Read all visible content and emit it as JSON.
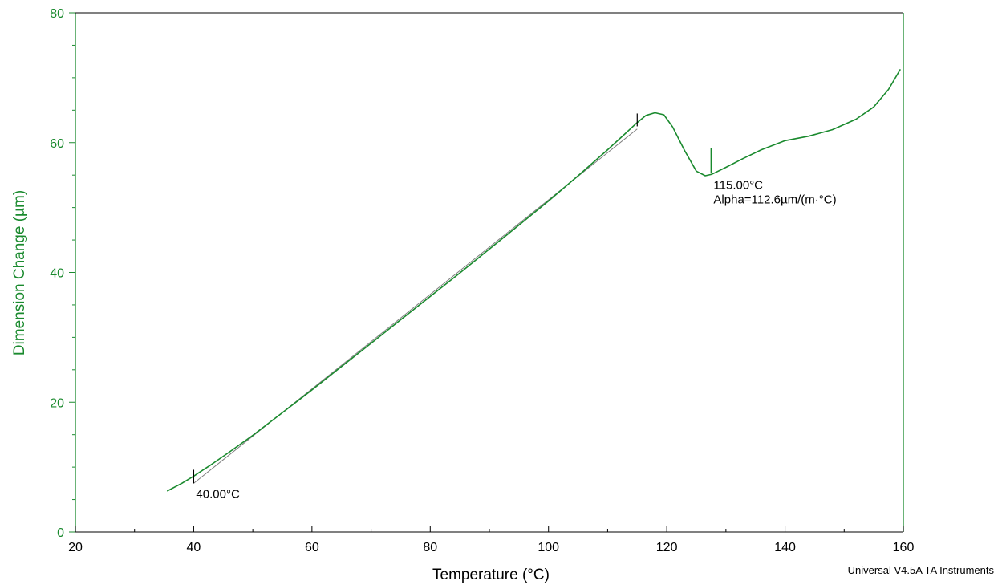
{
  "chart_data": {
    "type": "line",
    "title": "",
    "xlabel": "Temperature (°C)",
    "ylabel": "Dimension Change (µm)",
    "xlim": [
      20,
      160
    ],
    "ylim": [
      0,
      80
    ],
    "xticks": [
      "20",
      "40",
      "60",
      "80",
      "100",
      "120",
      "140",
      "160"
    ],
    "yticks": [
      "0",
      "20",
      "40",
      "60",
      "80"
    ],
    "grid": false,
    "legend": "none",
    "series": [
      {
        "color": "#1a8a2e",
        "x": [
          35.5,
          38,
          40,
          43,
          46,
          50,
          55,
          60,
          65,
          70,
          75,
          80,
          85,
          90,
          95,
          100,
          105,
          110,
          113,
          115,
          116.5,
          118,
          119.5,
          121,
          123,
          125,
          126.5,
          127.5,
          128,
          130,
          133,
          136,
          140,
          144,
          148,
          152,
          155,
          157.5,
          159.5
        ],
        "y": [
          6.3,
          7.5,
          8.6,
          10.4,
          12.3,
          14.9,
          18.4,
          21.9,
          25.5,
          29.1,
          32.7,
          36.3,
          39.9,
          43.6,
          47.3,
          51.0,
          54.9,
          58.9,
          61.4,
          63.1,
          64.2,
          64.6,
          64.3,
          62.4,
          58.8,
          55.6,
          54.9,
          55.1,
          55.3,
          56.2,
          57.6,
          58.9,
          60.3,
          61.0,
          62.0,
          63.6,
          65.5,
          68.2,
          71.3
        ]
      }
    ],
    "tangent": {
      "x": [
        40,
        115
      ],
      "y": [
        7.5,
        62.1
      ]
    },
    "annotations": [
      {
        "text": "40.00°C",
        "x": 40,
        "y": 8.6
      },
      {
        "text": "115.00°C",
        "x": 127.5,
        "y": 55.1
      },
      {
        "text": "Alpha=112.6µm/(m·°C)",
        "x": 127.5,
        "y": 55.1
      }
    ]
  },
  "colors": {
    "axis": "#1a8a2e",
    "tangent": "#808080",
    "text": "#000000"
  },
  "footer": "Universal V4.5A TA Instruments"
}
